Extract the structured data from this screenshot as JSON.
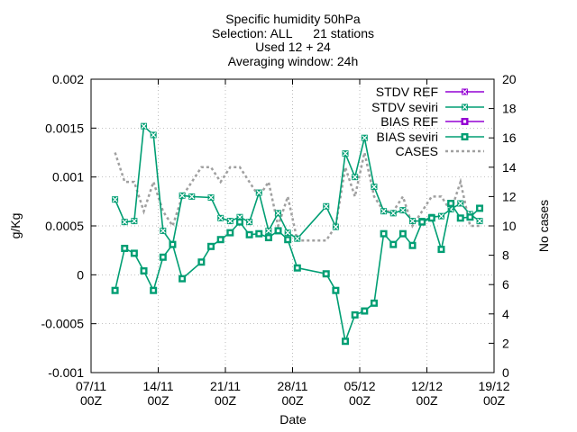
{
  "chart_data": {
    "type": "line",
    "title_lines": [
      "Specific humidity 50hPa",
      "Selection: ALL      21 stations",
      "Used 12 + 24",
      "Averaging window: 24h"
    ],
    "xlabel": "Date",
    "ylabel": "g/Kg",
    "y2label": "No cases",
    "x_ticks": [
      {
        "d": 0,
        "l1": "07/11",
        "l2": "00Z"
      },
      {
        "d": 7,
        "l1": "14/11",
        "l2": "00Z"
      },
      {
        "d": 14,
        "l1": "21/11",
        "l2": "00Z"
      },
      {
        "d": 21,
        "l1": "28/11",
        "l2": "00Z"
      },
      {
        "d": 28,
        "l1": "05/12",
        "l2": "00Z"
      },
      {
        "d": 35,
        "l1": "12/12",
        "l2": "00Z"
      },
      {
        "d": 42,
        "l1": "19/12",
        "l2": "00Z"
      }
    ],
    "xlim_days_from_07_11_00Z": [
      0,
      42
    ],
    "ylim": [
      -0.001,
      0.002
    ],
    "y_ticks": [
      "-0.001",
      "-0.0005",
      "0",
      "0.0005",
      "0.001",
      "0.0015",
      "0.002"
    ],
    "y2lim": [
      0,
      20
    ],
    "y2_ticks": [
      "0",
      "2",
      "4",
      "6",
      "8",
      "10",
      "12",
      "14",
      "16",
      "18",
      "20"
    ],
    "legend_position": "top-right",
    "series": [
      {
        "name": "STDV REF",
        "color": "#9400d3",
        "marker": "x-square",
        "x": [],
        "values": []
      },
      {
        "name": "STDV seviri",
        "color": "#009e73",
        "marker": "x-square",
        "x": [
          2.5,
          3.5,
          4.5,
          5.5,
          6.5,
          7.5,
          8.5,
          9.5,
          10.5,
          12.5,
          13.5,
          14.5,
          15.5,
          16.5,
          17.5,
          18.5,
          19.5,
          20.5,
          21.5,
          24.5,
          25.5,
          26.5,
          27.5,
          28.5,
          29.5,
          30.5,
          31.5,
          32.5,
          33.5,
          34.5,
          35.5,
          36.5,
          37.5,
          38.5,
          39.5,
          40.5
        ],
        "values": [
          0.00077,
          0.00054,
          0.00055,
          0.00152,
          0.00143,
          0.00045,
          0.00031,
          0.00081,
          0.0008,
          0.00079,
          0.00058,
          0.00055,
          0.00059,
          0.00054,
          0.00084,
          0.00045,
          0.00063,
          0.00043,
          0.00037,
          0.0007,
          0.00049,
          0.00124,
          0.001,
          0.0014,
          0.0009,
          0.00065,
          0.00063,
          0.00066,
          0.00055,
          0.00055,
          0.00059,
          0.0006,
          0.00067,
          0.00073,
          0.00062,
          0.00055
        ]
      },
      {
        "name": "BIAS REF",
        "color": "#9400d3",
        "marker": "square",
        "x": [],
        "values": []
      },
      {
        "name": "BIAS seviri",
        "color": "#009e73",
        "marker": "square",
        "x": [
          2.5,
          3.5,
          4.5,
          5.5,
          6.5,
          7.5,
          8.5,
          9.5,
          11.5,
          12.5,
          13.5,
          14.5,
          15.5,
          16.5,
          17.5,
          18.5,
          19.5,
          20.5,
          21.5,
          24.5,
          25.5,
          26.5,
          27.5,
          28.5,
          29.5,
          30.5,
          31.5,
          32.5,
          33.5,
          34.5,
          35.5,
          36.5,
          37.5,
          38.5,
          39.5,
          40.5
        ],
        "values": [
          -0.00016,
          0.00027,
          0.00022,
          4e-05,
          -0.00016,
          0.00018,
          0.00031,
          -4e-05,
          0.00013,
          0.00029,
          0.00036,
          0.00043,
          0.00054,
          0.00041,
          0.00042,
          0.00038,
          0.00045,
          0.00036,
          7e-05,
          1e-05,
          -0.00016,
          -0.00068,
          -0.00041,
          -0.00037,
          -0.00029,
          0.00042,
          0.00031,
          0.00042,
          0.0003,
          0.00054,
          0.00058,
          0.00026,
          0.00073,
          0.00058,
          0.00059,
          0.00068
        ]
      },
      {
        "name": "CASES",
        "color": "#a0a0a0",
        "marker": "none",
        "axis": "y2",
        "x": [
          2.5,
          3.5,
          4.5,
          5.5,
          6.5,
          7.5,
          8.5,
          9.5,
          10.5,
          11.5,
          12.5,
          13.5,
          14.5,
          15.5,
          16.5,
          17.5,
          18.5,
          19.5,
          20.5,
          21.5,
          24.5,
          25.5,
          26.5,
          27.5,
          28.5,
          29.5,
          30.5,
          31.5,
          32.5,
          33.5,
          34.5,
          35.5,
          36.5,
          37.5,
          38.5,
          39.5,
          40.5
        ],
        "values": [
          15,
          13,
          13,
          11,
          13,
          11,
          10,
          12,
          13,
          14,
          14,
          13,
          14,
          14,
          13,
          12,
          13,
          10,
          12,
          9,
          9,
          10,
          14,
          12,
          15,
          12,
          11,
          11,
          12,
          10,
          11,
          12,
          12,
          11,
          13,
          10,
          10
        ]
      }
    ]
  }
}
